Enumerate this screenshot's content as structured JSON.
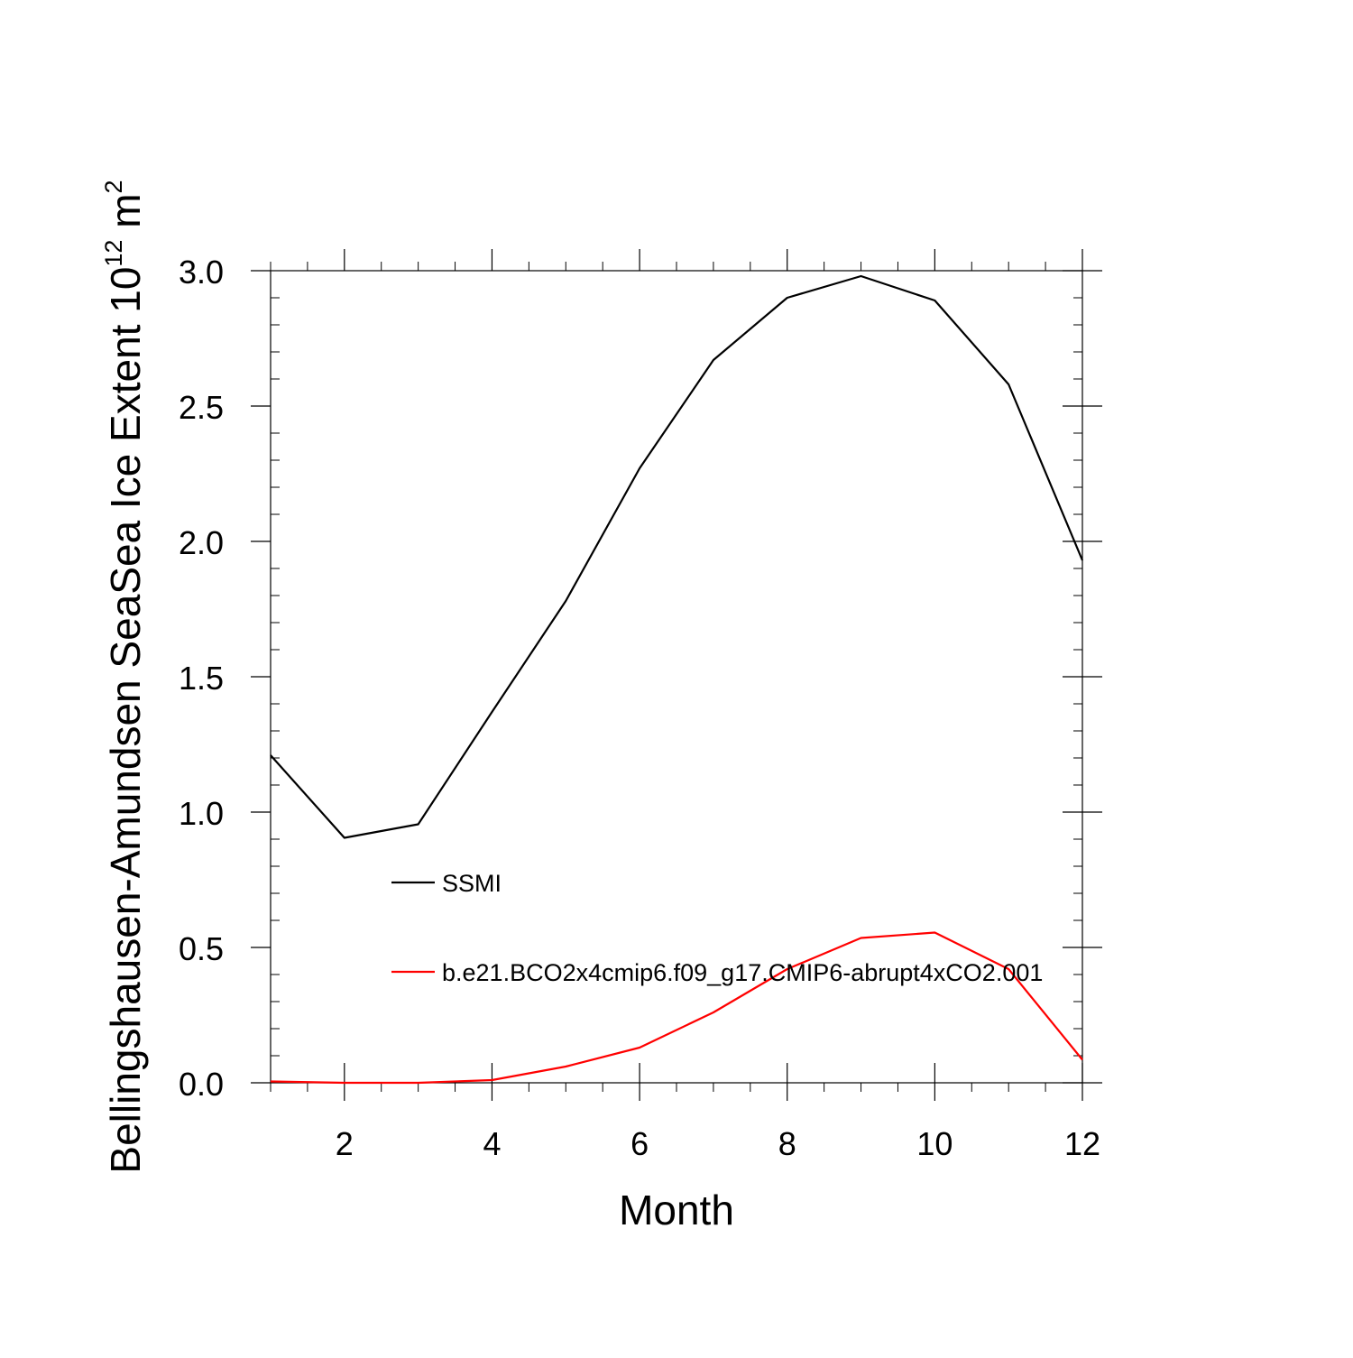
{
  "chart_data": {
    "type": "line",
    "title": "",
    "xlabel": "Month",
    "ylabel": {
      "text": "Bellingshausen-Amundsen SeaSea Ice Extent 10",
      "exponent": "12",
      "unit": "m",
      "unit_exponent": "2"
    },
    "xlim": [
      1,
      12
    ],
    "ylim": [
      0,
      3
    ],
    "x_ticks": [
      2,
      4,
      6,
      8,
      10,
      12
    ],
    "x_tick_labels": [
      "2",
      "4",
      "6",
      "8",
      "10",
      "12"
    ],
    "y_ticks": [
      0,
      0.5,
      1,
      1.5,
      2,
      2.5,
      3
    ],
    "y_tick_labels": [
      "0.0",
      "0.5",
      "1.0",
      "1.5",
      "2.0",
      "2.5",
      "3.0"
    ],
    "x": [
      1,
      2,
      3,
      4,
      5,
      6,
      7,
      8,
      9,
      10,
      11,
      12
    ],
    "series": [
      {
        "name": "SSMI",
        "color": "#000000",
        "values": [
          1.21,
          0.905,
          0.955,
          1.37,
          1.78,
          2.27,
          2.67,
          2.9,
          2.98,
          2.89,
          2.58,
          1.93
        ]
      },
      {
        "name": "b.e21.BCO2x4cmip6.f09_g17.CMIP6-abrupt4xCO2.001",
        "color": "#ff0000",
        "values": [
          0.005,
          0.0,
          0.0,
          0.01,
          0.06,
          0.13,
          0.26,
          0.42,
          0.535,
          0.555,
          0.42,
          0.085
        ]
      }
    ],
    "legend_location": "inside-lower-left",
    "grid": false
  }
}
